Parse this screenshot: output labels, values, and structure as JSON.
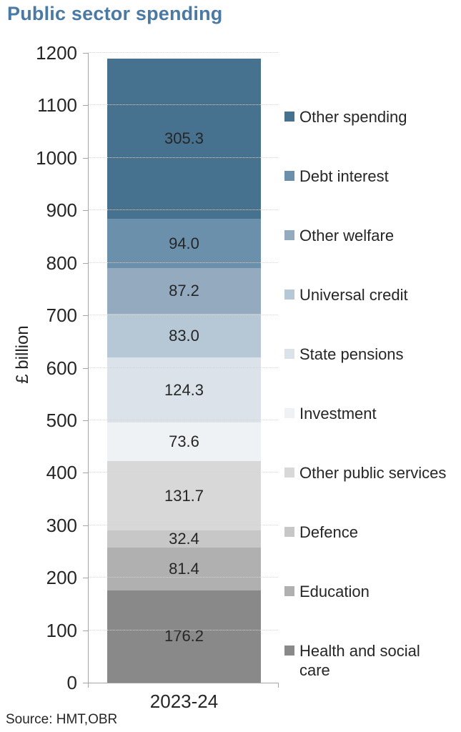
{
  "title": "Public sector spending",
  "source_note": "Source: HMT,OBR",
  "colors": {
    "title_accent": "#4a7aa3",
    "axis": "#a6a6a6",
    "gridline": "#d4d4d4",
    "text": "#262626"
  },
  "chart_data": {
    "type": "bar",
    "stacked": true,
    "title": "Public sector spending",
    "xlabel": "",
    "ylabel": "£ billion",
    "categories": [
      "2023-24"
    ],
    "ylim": [
      0,
      1200
    ],
    "ytick_step": 100,
    "grid": "horizontal-dotted",
    "data_labels": true,
    "data_label_format": "one-decimal",
    "legend_position": "right",
    "legend_order": "reverse-of-stack (top segment listed first)",
    "series": [
      {
        "name": "Health and social care",
        "values": [
          176.2
        ],
        "color": "#898989"
      },
      {
        "name": "Education",
        "values": [
          81.4
        ],
        "color": "#b0b0b0"
      },
      {
        "name": "Defence",
        "values": [
          32.4
        ],
        "color": "#c7c7c7"
      },
      {
        "name": "Other public services",
        "values": [
          131.7
        ],
        "color": "#d8d8d8"
      },
      {
        "name": "Investment",
        "values": [
          73.6
        ],
        "color": "#eef2f5"
      },
      {
        "name": "State pensions",
        "values": [
          124.3
        ],
        "color": "#dbe2e9"
      },
      {
        "name": "Universal credit",
        "values": [
          83.0
        ],
        "color": "#b6c7d5"
      },
      {
        "name": "Other welfare",
        "values": [
          87.2
        ],
        "color": "#93aabf"
      },
      {
        "name": "Debt interest",
        "values": [
          94.0
        ],
        "color": "#6b90ac"
      },
      {
        "name": "Other spending",
        "values": [
          305.3
        ],
        "color": "#46718f"
      }
    ]
  }
}
